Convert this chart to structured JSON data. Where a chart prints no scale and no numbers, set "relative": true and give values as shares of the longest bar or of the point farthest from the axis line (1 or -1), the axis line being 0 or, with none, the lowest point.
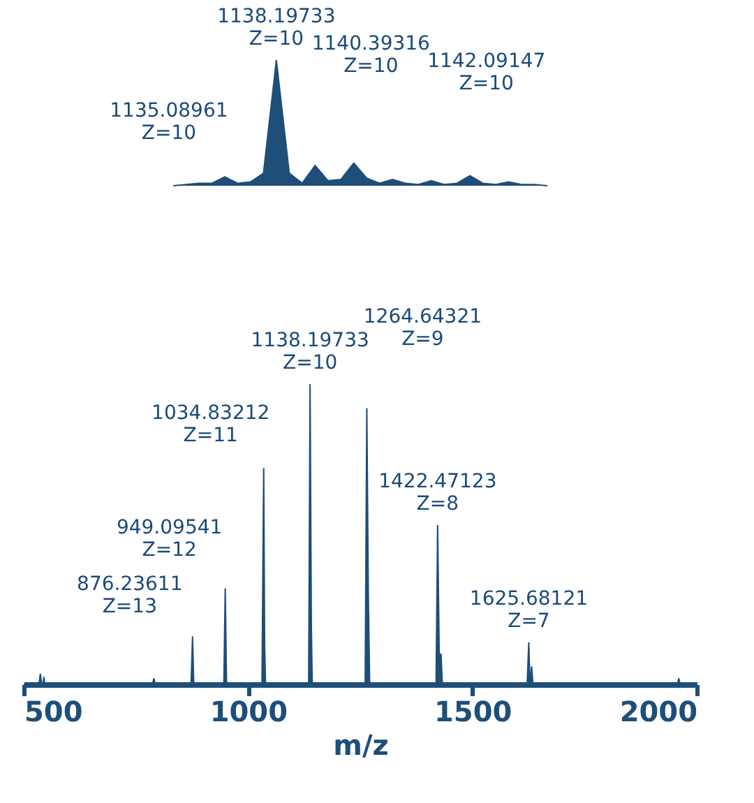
{
  "chart_data": [
    {
      "type": "area",
      "relative": true,
      "tick_labels": false,
      "color": "#1f4e79",
      "categories": [
        null,
        null,
        null,
        null,
        null,
        null,
        null,
        null,
        null,
        null,
        null,
        null,
        null,
        null,
        null,
        null,
        null,
        null,
        null,
        null,
        null,
        null,
        null,
        null,
        null,
        null,
        null,
        null,
        null,
        null
      ],
      "values": [
        0,
        0.01,
        0.02,
        0.02,
        0.07,
        0.02,
        0.03,
        0.1,
        1,
        0.1,
        0.02,
        0.16,
        0.04,
        0.05,
        0.18,
        0.06,
        0.02,
        0.05,
        0.02,
        0.01,
        0.04,
        0.01,
        0.02,
        0.08,
        0.02,
        0.01,
        0.03,
        0.01,
        0.01,
        0
      ],
      "annotations": [
        "1135.08961\nZ=10",
        "1138.19733\nZ=10",
        "1140.39316\nZ=10",
        "1142.09147\nZ=10"
      ]
    },
    {
      "type": "area",
      "relative": true,
      "color": "#1f4e79",
      "xlabel": "m/z",
      "xlim": [
        500,
        2000
      ],
      "xticks": [
        500,
        1000,
        1500,
        2000
      ],
      "x": [
        500,
        534,
        537,
        540,
        543,
        545,
        547,
        787,
        790,
        793,
        873,
        876.24,
        879,
        946,
        949.1,
        952,
        1031,
        1034.83,
        1037,
        1039,
        1135,
        1138.2,
        1141,
        1143,
        1261,
        1264.64,
        1268,
        1271,
        1419,
        1422.47,
        1426,
        1430,
        1433,
        1622,
        1625.68,
        1628,
        1632,
        1635,
        1957,
        1960,
        1963,
        2000
      ],
      "values": [
        0,
        0,
        0.035,
        0,
        0,
        0.025,
        0,
        0,
        0.02,
        0,
        0,
        0.16,
        0,
        0,
        0.32,
        0,
        0,
        0.72,
        0.12,
        0,
        0,
        1,
        0.2,
        0,
        0,
        0.92,
        0.3,
        0,
        0,
        0.53,
        0.1,
        0.1,
        0,
        0,
        0.14,
        0,
        0.06,
        0,
        0,
        0.02,
        0,
        0
      ],
      "annotations": [
        {
          "text": "876.23611\nZ=13",
          "x": 876.24,
          "y": 0.16
        },
        {
          "text": "949.09541\nZ=12",
          "x": 949.1,
          "y": 0.32
        },
        {
          "text": "1034.83212\nZ=11",
          "x": 1034.83,
          "y": 0.72
        },
        {
          "text": "1138.19733\nZ=10",
          "x": 1138.2,
          "y": 1
        },
        {
          "text": "1264.64321\nZ=9",
          "x": 1264.64,
          "y": 0.92
        },
        {
          "text": "1422.47123\nZ=8",
          "x": 1422.47,
          "y": 0.53
        },
        {
          "text": "1625.68121\nZ=7",
          "x": 1625.68,
          "y": 0.14
        }
      ]
    }
  ]
}
